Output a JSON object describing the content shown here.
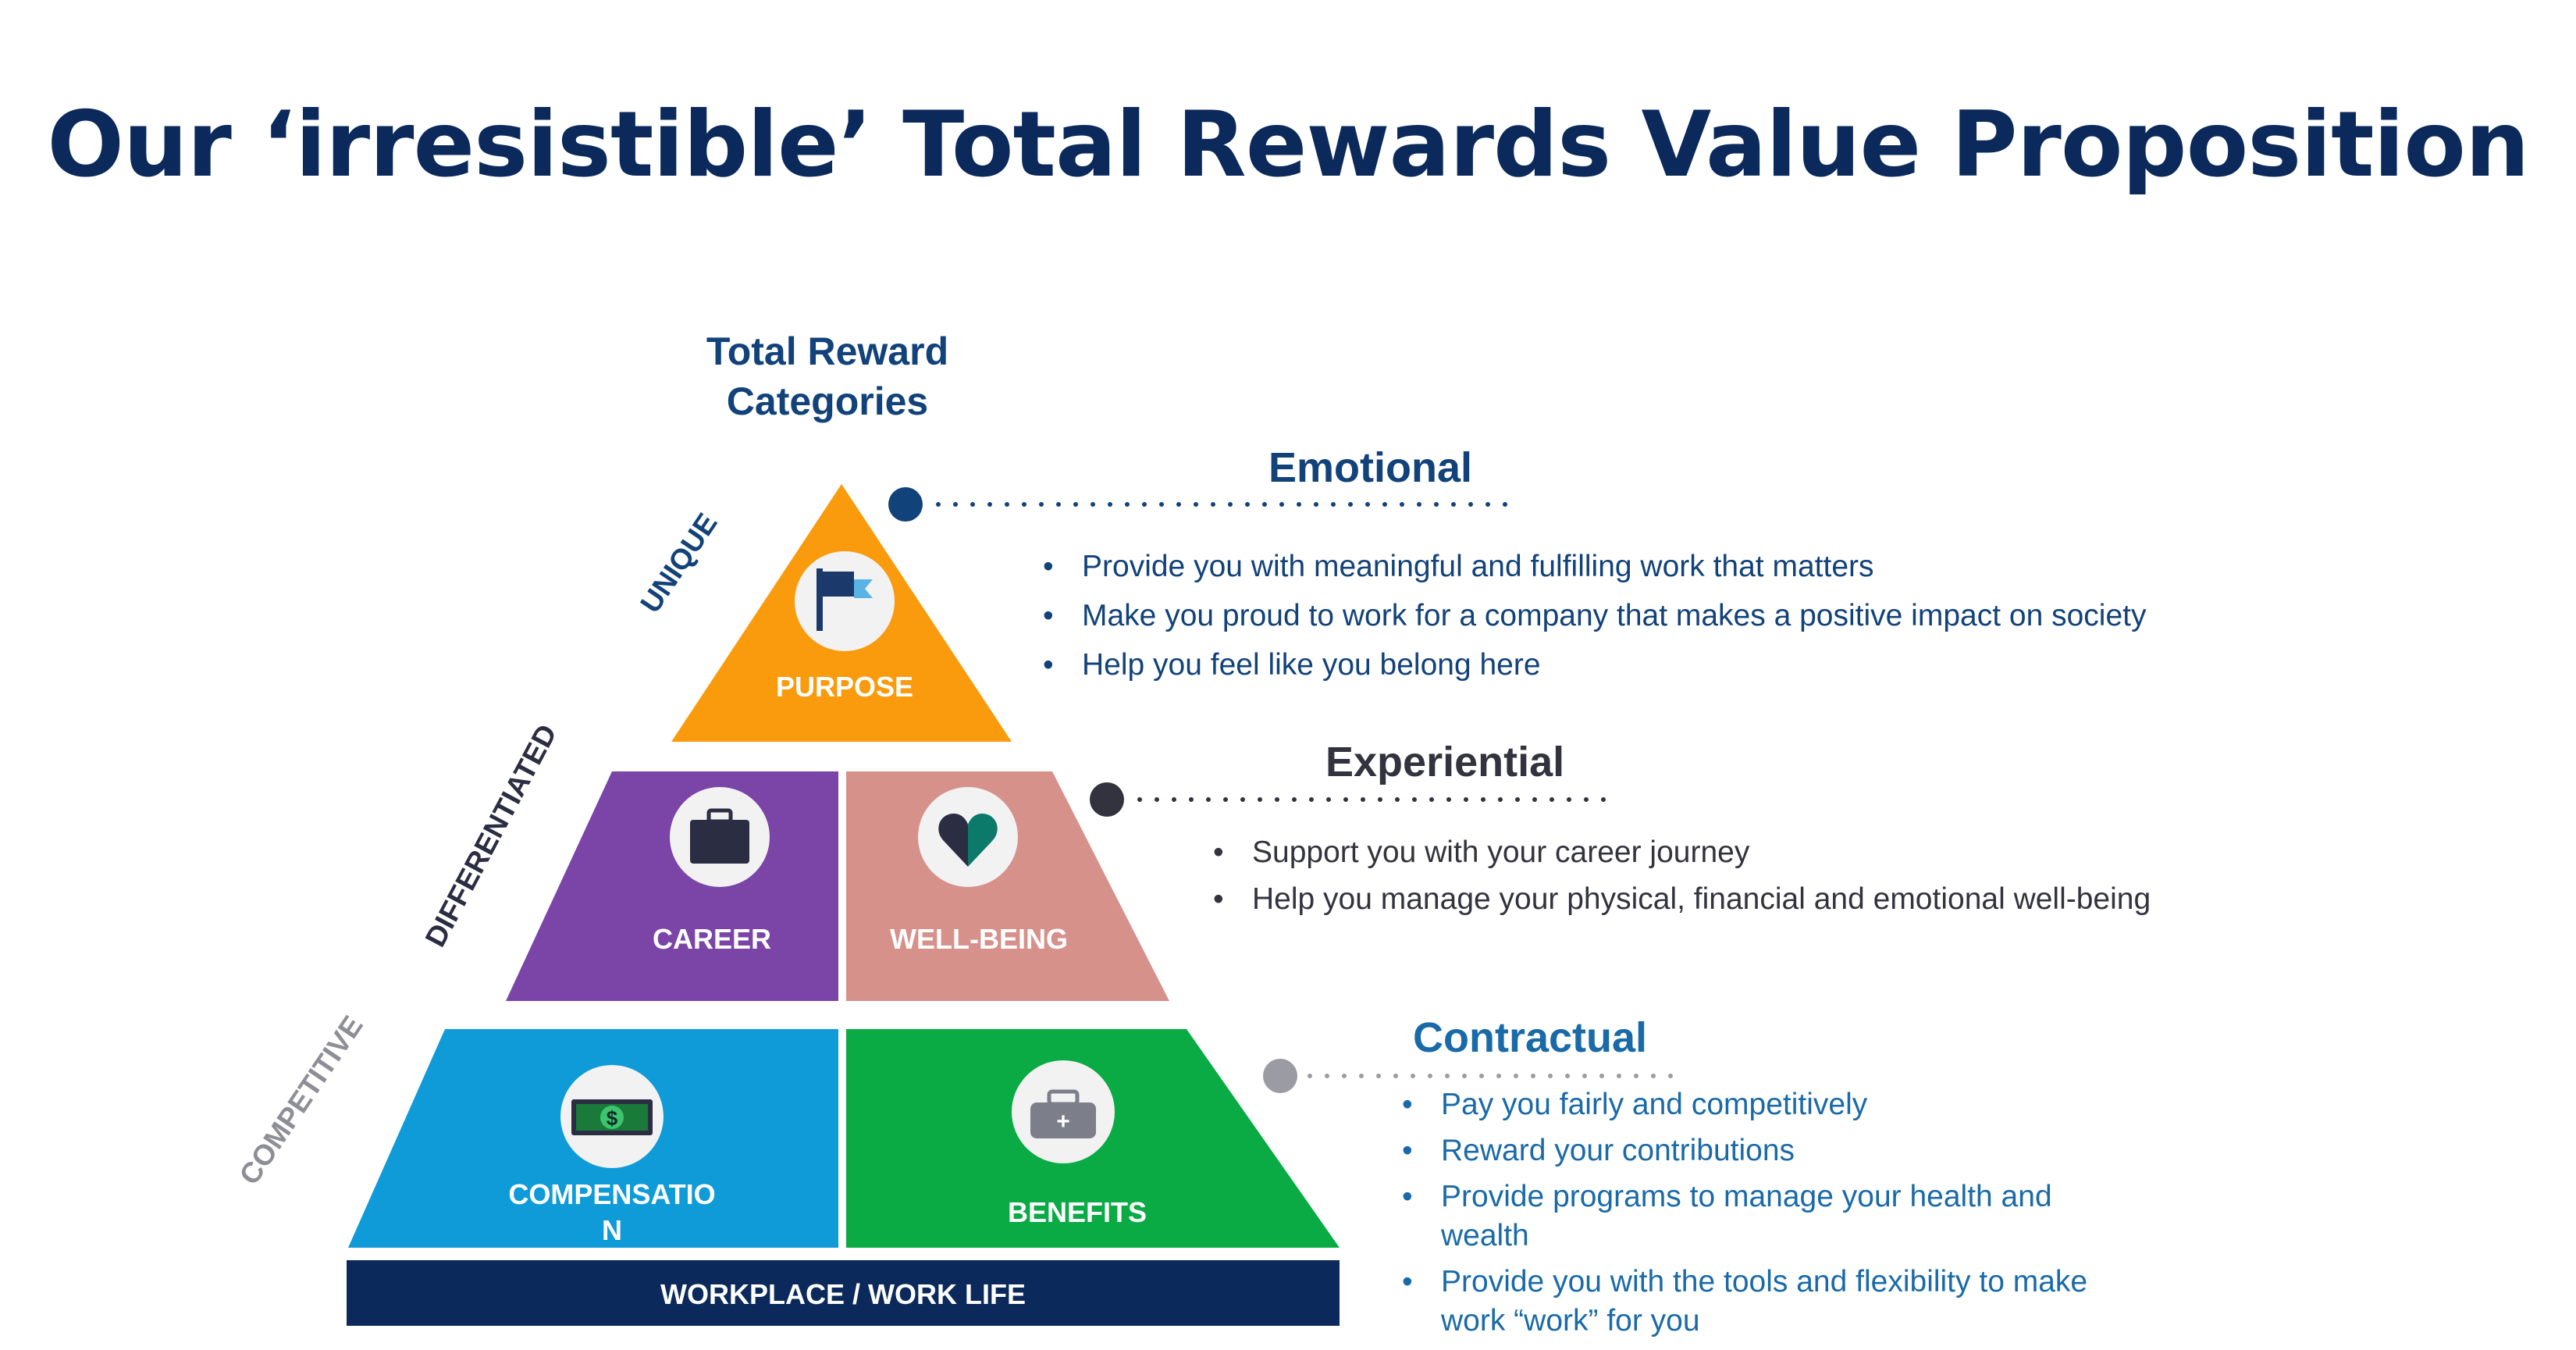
{
  "title": "Our ‘irresistible’ Total Rewards Value Proposition",
  "pyramid_heading": "Total Reward Categories",
  "tiers": {
    "unique": "UNIQUE",
    "differentiated": "DIFFERENTIATED",
    "competitive": "COMPETITIVE"
  },
  "categories": {
    "purpose": "PURPOSE",
    "career": "CAREER",
    "wellbeing": "WELL-BEING",
    "compensation_line1": "COMPENSATIO",
    "compensation_line2": "N",
    "benefits": "BENEFITS",
    "base": "WORKPLACE / WORK LIFE"
  },
  "icons": {
    "purpose": "flag-icon",
    "career": "briefcase-icon",
    "wellbeing": "heart-icon",
    "compensation": "money-icon",
    "benefits": "medical-kit-icon"
  },
  "sections": {
    "emotional": {
      "heading": "Emotional",
      "bullets": [
        "Provide you with meaningful and fulfilling work that matters",
        "Make you proud to work for a company that makes a positive impact on society",
        "Help you feel like you belong here"
      ]
    },
    "experiential": {
      "heading": "Experiential",
      "bullets": [
        "Support you with your career journey",
        "Help you manage your physical, financial and emotional well-being"
      ]
    },
    "contractual": {
      "heading": "Contractual",
      "bullets": [
        "Pay you fairly and competitively",
        "Reward your contributions",
        "Provide programs to manage your health and wealth",
        "Provide you with the tools and flexibility to make work “work” for you"
      ]
    }
  },
  "colors": {
    "title": "#0b2a5b",
    "purpose": "#f99b0c",
    "career": "#7b45a8",
    "wellbeing": "#d7918b",
    "compensation": "#0e9bd8",
    "benefits": "#0aaa45",
    "base": "#0b2a5b",
    "emotional": "#12427a",
    "experiential": "#33333f",
    "contractual": "#1a6aa8",
    "competitive_tier": "#8e8e96"
  }
}
